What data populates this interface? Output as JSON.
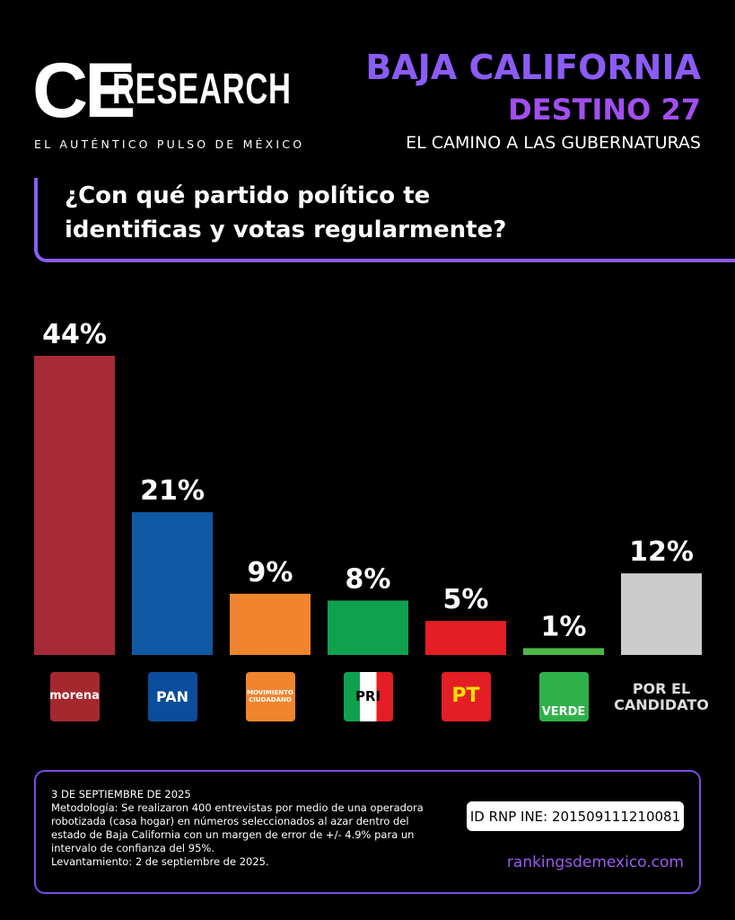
{
  "header": {
    "brand": "CE",
    "brand_suffix": "RESEARCH",
    "tagline": "EL AUTÉNTICO PULSO DE MÉXICO",
    "title": "BAJA CALIFORNIA",
    "subtitle": "DESTINO 27",
    "kicker": "EL CAMINO A LAS GUBERNATURAS"
  },
  "question": [
    "¿Con qué partido político te",
    "identificas y votas regularmente?"
  ],
  "chart_data": {
    "type": "bar",
    "categories": [
      "morena",
      "PAN",
      "MOVIMIENTO CIUDADANO",
      "PRI",
      "PT",
      "VERDE",
      "POR EL CANDIDATO"
    ],
    "values": [
      44,
      21,
      9,
      8,
      5,
      1,
      12
    ],
    "value_labels": [
      "44%",
      "21%",
      "9%",
      "8%",
      "5%",
      "1%",
      "12%"
    ],
    "colors": [
      "#a52a35",
      "#0f58a3",
      "#f0852d",
      "#10a14f",
      "#e31e24",
      "#4cb847",
      "#cccccc"
    ]
  },
  "footer": {
    "date": "3 DE SEPTIEMBRE DE 2025",
    "methodology": [
      "Metodología: Se realizaron 400 entrevistas por medio de una operadora",
      "robotizada (casa hogar) en números seleccionados al azar dentro del",
      "estado de Baja California con un margen de error de +/- 4.9% para un",
      "intervalo de confianza del 95%."
    ],
    "fieldwork": "Levantamiento: 2 de septiembre de 2025.",
    "id": "ID RNP INE: 201509111210081",
    "website": "rankingsdemexico.com"
  }
}
